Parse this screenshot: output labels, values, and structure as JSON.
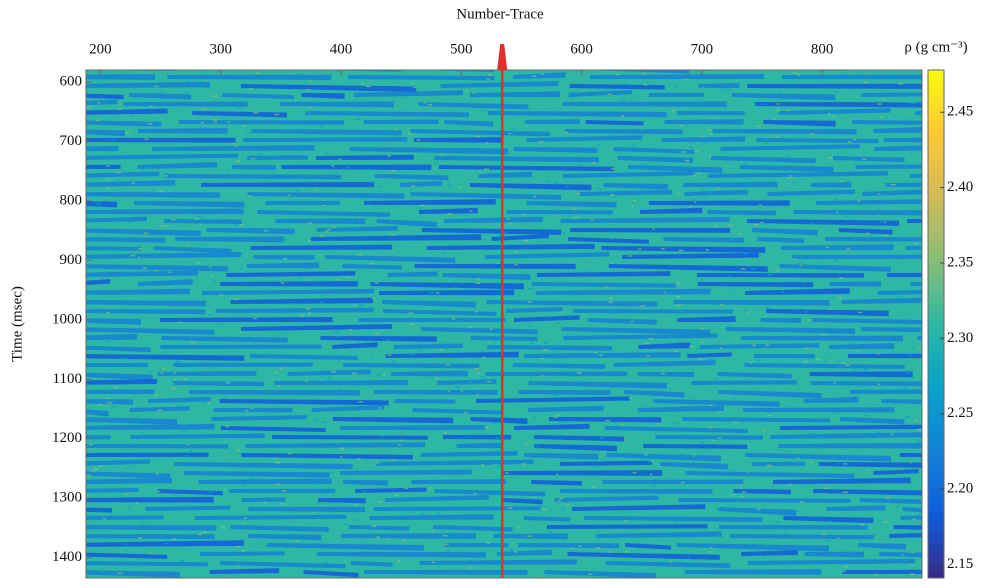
{
  "chart_data": {
    "type": "heatmap",
    "x_label": "Number-Trace",
    "y_label": "Time (msec)",
    "colorbar_label": "ρ (g cm⁻³)",
    "xlim": [
      188,
      883
    ],
    "xticks": [
      200,
      300,
      400,
      500,
      600,
      700,
      800
    ],
    "ylim": [
      580,
      1434
    ],
    "y_inverted": true,
    "yticks": [
      600,
      700,
      800,
      900,
      1000,
      1100,
      1200,
      1300,
      1400
    ],
    "clim": [
      2.141,
      2.478
    ],
    "cticks": [
      2.15,
      {
        "value": 2.2,
        "label": "2.20"
      },
      2.25,
      {
        "value": 2.3,
        "label": "2.30"
      },
      2.35,
      {
        "value": 2.4,
        "label": "2.40"
      },
      2.45
    ],
    "colormap": [
      "#352a87",
      "#0f5cdd",
      "#1481d6",
      "#06a4ca",
      "#2eb7a4",
      "#87bf77",
      "#d1bb59",
      "#fec832",
      "#f9fb0e"
    ],
    "well_trace": 534,
    "well_color": "#e0302a"
  }
}
